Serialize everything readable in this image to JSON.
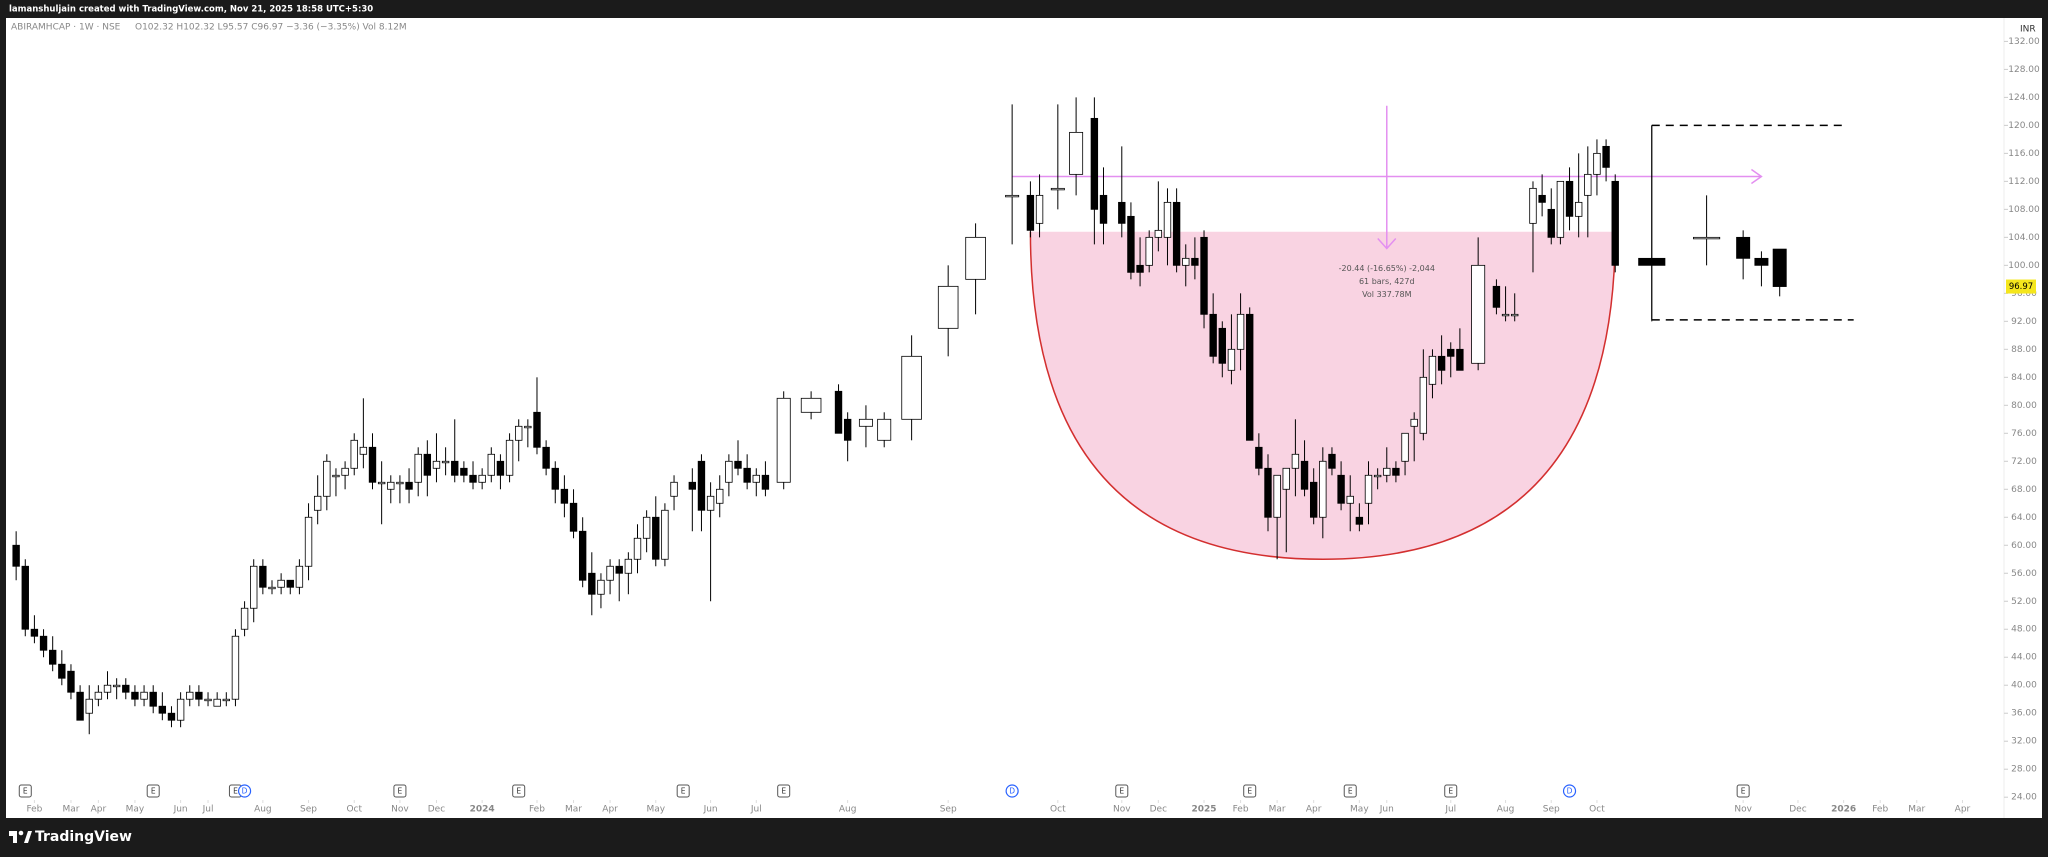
{
  "chart_data": {
    "type": "candlestick",
    "banner": "lamanshuljain created with TradingView.com, Nov 21, 2025 18:58 UTC+5:30",
    "symbol": "ABIRAMHCAP · 1W · NSE",
    "ohlc_text": "O102.32  H102.32  L95.57  C96.97  −3.36 (−3.35%)  Vol 8.12M",
    "currency": "INR",
    "brand": "TradingView",
    "up_color": "#ffffff",
    "down_color": "#000000",
    "wick_color": "#000000",
    "x": [
      1,
      2,
      3,
      4,
      5,
      6,
      7,
      8,
      9,
      10,
      11,
      12,
      13,
      14,
      15,
      16,
      17,
      18,
      19,
      20,
      21,
      22,
      23,
      24,
      25,
      26,
      27,
      28,
      29,
      30,
      31,
      32,
      33,
      34,
      35,
      36,
      37,
      38,
      39,
      40,
      41,
      42,
      43,
      44,
      45,
      46,
      47,
      48,
      49,
      50,
      51,
      52,
      53,
      54,
      55,
      56,
      57,
      58,
      59,
      60,
      61,
      62,
      63,
      64,
      65,
      66,
      67,
      68,
      69,
      70,
      71,
      72,
      73,
      75,
      76,
      77,
      78,
      79,
      80,
      81,
      82,
      83,
      85,
      88,
      91,
      92,
      94,
      96,
      99,
      103,
      106,
      110,
      112,
      113,
      115,
      117,
      119,
      120,
      122,
      123,
      124,
      125,
      126,
      127,
      128,
      129,
      130,
      131,
      132,
      133,
      134,
      135,
      136,
      137,
      138,
      139,
      140,
      141,
      142,
      143,
      144,
      145,
      146,
      147,
      148,
      149,
      150,
      151,
      152,
      153,
      154,
      155,
      156,
      157,
      158,
      159,
      161,
      163,
      164,
      165,
      167,
      168,
      169,
      170,
      171,
      172,
      173,
      174,
      175,
      176,
      180,
      186,
      190,
      192,
      194
    ],
    "open": [
      60,
      57,
      48,
      47,
      45,
      43,
      42,
      39,
      36,
      38,
      39,
      40,
      40,
      39,
      38,
      39,
      37,
      36,
      35,
      38,
      39,
      38,
      37,
      38,
      38,
      48,
      51,
      57,
      54,
      54,
      55,
      54,
      57,
      65,
      67,
      70,
      70,
      71,
      73,
      74,
      69,
      68,
      69,
      69,
      69,
      73,
      71,
      72,
      72,
      71,
      70,
      69,
      70,
      72,
      70,
      75,
      77,
      79,
      74,
      71,
      68,
      66,
      62,
      56,
      53,
      55,
      57,
      56,
      58,
      61,
      64,
      58,
      67,
      69,
      72,
      65,
      66,
      69,
      72,
      71,
      69,
      70,
      69,
      79,
      82,
      78,
      77,
      75,
      78,
      91,
      98,
      110,
      110,
      106,
      111,
      113,
      121,
      110,
      109,
      107,
      100,
      100,
      104,
      104,
      109,
      100,
      101,
      104,
      93,
      91,
      85,
      88,
      93,
      74,
      71,
      64,
      68,
      71,
      72,
      69,
      64,
      73,
      70,
      66,
      64,
      66,
      70,
      70,
      71,
      72,
      77,
      76,
      83,
      87,
      88,
      88,
      86,
      97,
      93,
      93,
      106,
      110,
      108,
      104,
      112,
      107,
      110,
      113,
      117,
      112,
      101,
      104,
      104,
      101,
      102.32
    ],
    "high": [
      62,
      58,
      50,
      48,
      47,
      45,
      43,
      40,
      40,
      40,
      42,
      41,
      41,
      40,
      40,
      40,
      39,
      37,
      39,
      40,
      40,
      39,
      39,
      39,
      48,
      52,
      58,
      58,
      55,
      56,
      55,
      58,
      66,
      70,
      73,
      71,
      72,
      76,
      81,
      76,
      72,
      70,
      70,
      71,
      74,
      75,
      76,
      74,
      78,
      72,
      72,
      71,
      74,
      73,
      76,
      78,
      78,
      84,
      75,
      72,
      70,
      68,
      64,
      59,
      56,
      58,
      58,
      59,
      63,
      65,
      67,
      66,
      70,
      71,
      73,
      69,
      70,
      73,
      75,
      73,
      71,
      72,
      82,
      82,
      83,
      79,
      80,
      79,
      90,
      100,
      106,
      123,
      112,
      113,
      123,
      124,
      124,
      114,
      117,
      109,
      104,
      105,
      112,
      111,
      111,
      103,
      104,
      105,
      96,
      92,
      93,
      96,
      94,
      76,
      73,
      70,
      71,
      78,
      75,
      71,
      74,
      74,
      72,
      70,
      66,
      72,
      71,
      74,
      72,
      76,
      79,
      88,
      88,
      90,
      89,
      91,
      104,
      98,
      97,
      96,
      112,
      113,
      111,
      112,
      114,
      116,
      117,
      118,
      118,
      113,
      120,
      110,
      105,
      102,
      102.32
    ],
    "low": [
      55,
      47,
      46,
      44,
      42,
      40,
      38,
      35,
      33,
      37,
      38,
      38,
      38,
      37,
      37,
      36,
      35,
      34,
      34,
      37,
      37,
      37,
      37,
      37,
      37,
      47,
      49,
      53,
      53,
      53,
      53,
      53,
      55,
      63,
      65,
      67,
      68,
      70,
      71,
      68,
      63,
      66,
      66,
      66,
      67,
      67,
      69,
      70,
      69,
      69,
      68,
      68,
      69,
      68,
      69,
      72,
      74,
      73,
      70,
      66,
      64,
      61,
      54,
      50,
      51,
      53,
      52,
      53,
      56,
      59,
      57,
      57,
      65,
      62,
      62,
      52,
      64,
      67,
      70,
      68,
      67,
      67,
      68,
      78,
      76,
      72,
      74,
      74,
      75,
      87,
      93,
      103,
      104,
      104,
      108,
      110,
      103,
      103,
      104,
      98,
      97,
      99,
      102,
      100,
      99,
      97,
      98,
      91,
      86,
      84,
      83,
      85,
      75,
      70,
      62,
      58,
      59,
      67,
      67,
      63,
      61,
      70,
      65,
      62,
      62,
      63,
      68,
      69,
      69,
      70,
      72,
      75,
      81,
      83,
      84,
      85,
      85,
      93,
      92,
      92,
      99,
      107,
      103,
      103,
      105,
      104,
      104,
      110,
      112,
      99,
      92,
      100,
      98,
      97,
      95.57
    ],
    "close": [
      57,
      48,
      47,
      45,
      43,
      41,
      39,
      35,
      38,
      39,
      40,
      40,
      39,
      38,
      39,
      37,
      36,
      35,
      38,
      39,
      38,
      38,
      38,
      38,
      47,
      51,
      57,
      54,
      54,
      55,
      54,
      57,
      64,
      67,
      72,
      70,
      71,
      75,
      74,
      69,
      69,
      69,
      69,
      68,
      73,
      70,
      72,
      72,
      70,
      70,
      69,
      70,
      73,
      70,
      75,
      77,
      77,
      74,
      71,
      68,
      66,
      62,
      55,
      53,
      55,
      57,
      56,
      58,
      61,
      64,
      58,
      65,
      69,
      68,
      65,
      67,
      68,
      72,
      71,
      69,
      70,
      68,
      81,
      81,
      76,
      75,
      78,
      78,
      87,
      97,
      104,
      110,
      105,
      110,
      111,
      119,
      108,
      106,
      106,
      99,
      99,
      104,
      105,
      109,
      100,
      101,
      100,
      93,
      87,
      86,
      88,
      93,
      75,
      71,
      64,
      70,
      71,
      73,
      68,
      64,
      72,
      71,
      66,
      67,
      63,
      70,
      70,
      71,
      70,
      76,
      78,
      84,
      87,
      85,
      87,
      85,
      100,
      94,
      93,
      93,
      111,
      109,
      104,
      112,
      107,
      109,
      113,
      116,
      114,
      100,
      100,
      104,
      101,
      100,
      96.97
    ],
    "xlim": [
      0,
      218
    ],
    "ylim": [
      23.6,
      134.2
    ],
    "yticks": [
      {
        "value": 24,
        "label": "24.00"
      },
      {
        "value": 28,
        "label": "28.00"
      },
      {
        "value": 32,
        "label": "32.00"
      },
      {
        "value": 36,
        "label": "36.00"
      },
      {
        "value": 40,
        "label": "40.00"
      },
      {
        "value": 44,
        "label": "44.00"
      },
      {
        "value": 48,
        "label": "48.00"
      },
      {
        "value": 52,
        "label": "52.00"
      },
      {
        "value": 56,
        "label": "56.00"
      },
      {
        "value": 60,
        "label": "60.00"
      },
      {
        "value": 64,
        "label": "64.00"
      },
      {
        "value": 68,
        "label": "68.00"
      },
      {
        "value": 72,
        "label": "72.00"
      },
      {
        "value": 76,
        "label": "76.00"
      },
      {
        "value": 80,
        "label": "80.00"
      },
      {
        "value": 84,
        "label": "84.00"
      },
      {
        "value": 88,
        "label": "88.00"
      },
      {
        "value": 92,
        "label": "92.00"
      },
      {
        "value": 96,
        "label": "96.00"
      },
      {
        "value": 100,
        "label": "100.00"
      },
      {
        "value": 104,
        "label": "104.00"
      },
      {
        "value": 108,
        "label": "108.00"
      },
      {
        "value": 112,
        "label": "112.00"
      },
      {
        "value": 116,
        "label": "116.00"
      },
      {
        "value": 120,
        "label": "120.00"
      },
      {
        "value": 124,
        "label": "124.00"
      },
      {
        "value": 128,
        "label": "128.00"
      },
      {
        "value": 132,
        "label": "132.00"
      }
    ],
    "xticks": [
      {
        "value": 3,
        "label": "Feb"
      },
      {
        "value": 7,
        "label": "Mar"
      },
      {
        "value": 10,
        "label": "Apr"
      },
      {
        "value": 14,
        "label": "May"
      },
      {
        "value": 19,
        "label": "Jun"
      },
      {
        "value": 22,
        "label": "Jul"
      },
      {
        "value": 28,
        "label": "Aug"
      },
      {
        "value": 33,
        "label": "Sep"
      },
      {
        "value": 38,
        "label": "Oct"
      },
      {
        "value": 43,
        "label": "Nov"
      },
      {
        "value": 47,
        "label": "Dec"
      },
      {
        "value": 52,
        "label": "2024"
      },
      {
        "value": 58,
        "label": "Feb"
      },
      {
        "value": 62,
        "label": "Mar"
      },
      {
        "value": 66,
        "label": "Apr"
      },
      {
        "value": 71,
        "label": "May"
      },
      {
        "value": 77,
        "label": "Jun"
      },
      {
        "value": 82,
        "label": "Jul"
      },
      {
        "value": 92,
        "label": "Aug"
      },
      {
        "value": 103,
        "label": "Sep"
      },
      {
        "value": 115,
        "label": "Oct"
      },
      {
        "value": 122,
        "label": "Nov"
      },
      {
        "value": 126,
        "label": "Dec"
      },
      {
        "value": 131,
        "label": "2025"
      },
      {
        "value": 135,
        "label": "Feb"
      },
      {
        "value": 139,
        "label": "Mar"
      },
      {
        "value": 143,
        "label": "Apr"
      },
      {
        "value": 148,
        "label": "May"
      },
      {
        "value": 151,
        "label": "Jun"
      },
      {
        "value": 158,
        "label": "Jul"
      },
      {
        "value": 164,
        "label": "Aug"
      },
      {
        "value": 169,
        "label": "Sep"
      },
      {
        "value": 174,
        "label": "Oct"
      },
      {
        "value": 190,
        "label": "Nov"
      },
      {
        "value": 196,
        "label": "Dec"
      },
      {
        "value": 201,
        "label": "2026"
      },
      {
        "value": 205,
        "label": "Feb"
      },
      {
        "value": 209,
        "label": "Mar"
      },
      {
        "value": 214,
        "label": "Apr"
      }
    ],
    "events": [
      {
        "x": 2,
        "label": "E"
      },
      {
        "x": 16,
        "label": "E"
      },
      {
        "x": 25,
        "label": "E"
      },
      {
        "x": 26,
        "label": "D"
      },
      {
        "x": 43,
        "label": "E"
      },
      {
        "x": 56,
        "label": "E"
      },
      {
        "x": 74,
        "label": "E"
      },
      {
        "x": 85,
        "label": "E"
      },
      {
        "x": 110,
        "label": "D"
      },
      {
        "x": 122,
        "label": "E"
      },
      {
        "x": 136,
        "label": "E"
      },
      {
        "x": 147,
        "label": "E"
      },
      {
        "x": 158,
        "label": "E"
      },
      {
        "x": 171,
        "label": "D"
      },
      {
        "x": 190,
        "label": "E"
      }
    ],
    "drawings": {
      "cup": {
        "x_start": 112,
        "x_end": 176,
        "x_bottom": 144,
        "top": 104.8,
        "bottom": 58,
        "fill": "#f9d3e2",
        "line": "#d32f2f"
      },
      "resistance": {
        "x_start": 110,
        "x_end": 192,
        "value": 112.7,
        "color": "#e38ff0"
      },
      "measure": {
        "x": 151,
        "from": 122.8,
        "to": 102.4,
        "color": "#e38ff0",
        "lines": [
          "-20.44 (-16.65%) -2,044",
          "61 bars, 427d",
          "Vol 337.78M"
        ]
      },
      "target_box": {
        "x_start": 180,
        "x_end": 201,
        "upper": 120,
        "lower": 92.2
      }
    },
    "last_tag_color": "#f5e61c"
  }
}
